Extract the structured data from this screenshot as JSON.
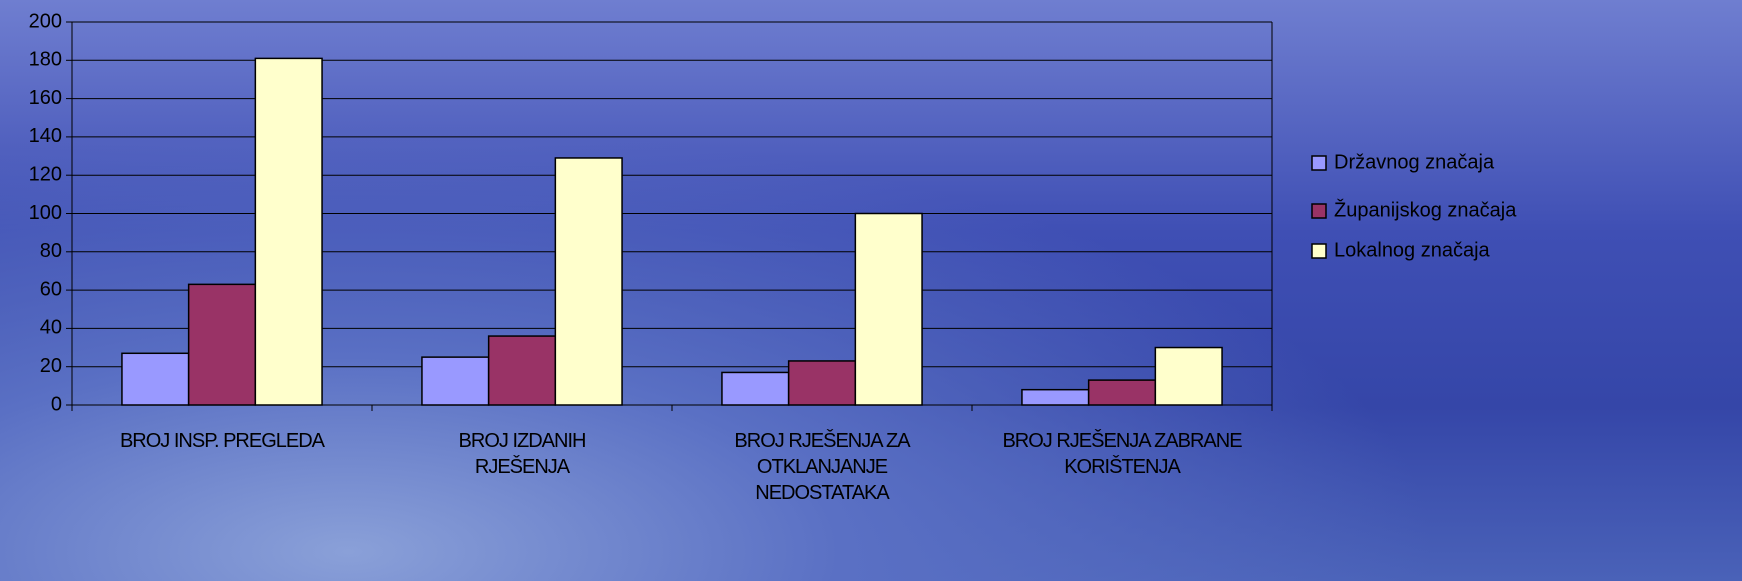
{
  "chart_data": {
    "type": "bar",
    "categories": [
      "BROJ INSP. PREGLEDA",
      "BROJ IZDANIH RJEŠENJA",
      "BROJ RJEŠENJA ZA OTKLANJANJE NEDOSTATAKA",
      "BROJ RJEŠENJA ZABRANE KORIŠTENJA"
    ],
    "series": [
      {
        "name": "Državnog značaja",
        "color": "#9999ff",
        "values": [
          27,
          25,
          17,
          8
        ]
      },
      {
        "name": "Županijskog značaja",
        "color": "#993366",
        "values": [
          63,
          36,
          23,
          13
        ]
      },
      {
        "name": "Lokalnog značaja",
        "color": "#ffffcc",
        "values": [
          181,
          129,
          100,
          30
        ]
      }
    ],
    "ylim": [
      0,
      200
    ],
    "yticks": [
      0,
      20,
      40,
      60,
      80,
      100,
      120,
      140,
      160,
      180,
      200
    ],
    "grid": true,
    "legend": "right"
  }
}
